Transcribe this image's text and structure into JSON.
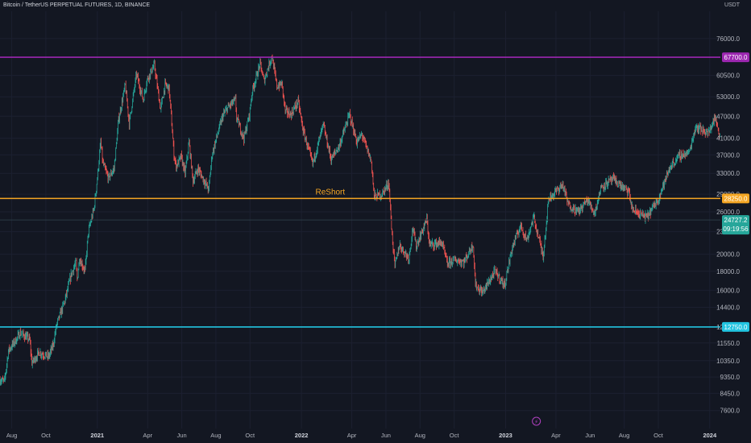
{
  "header": {
    "title": "Bitcoin / TetherUS PERPETUAL FUTURES, 1D, BINANCE",
    "currency": "USDT"
  },
  "colors": {
    "background": "#131722",
    "axis_text": "#b2b5be",
    "candle_up": "#26a69a",
    "candle_down": "#ef5350",
    "level_top": "#9c27b0",
    "level_mid": "#f5a623",
    "level_low": "#22c4e0",
    "current_price": "#26a69a"
  },
  "chart_data": {
    "type": "candlestick",
    "title": "Bitcoin / TetherUS PERPETUAL FUTURES, 1D, BINANCE",
    "y_unit": "USDT",
    "y_scale": "log",
    "y_range": [
      6800,
      90000
    ],
    "x_range": [
      "2020-07-11",
      "2024-01-20"
    ],
    "y_ticks": [
      "76000.0",
      "60500.0",
      "53000.0",
      "47000.0",
      "41000.0",
      "37000.0",
      "33000.0",
      "29000.0",
      "26000.0",
      "23000.0",
      "20000.0",
      "18000.0",
      "16000.0",
      "14400.0",
      "12750.0",
      "11550.0",
      "10350.0",
      "9350.0",
      "8450.0",
      "7600.0"
    ],
    "x_ticks": [
      {
        "label": "Aug",
        "date": "2020-08-01",
        "bold": false
      },
      {
        "label": "Oct",
        "date": "2020-10-01",
        "bold": false
      },
      {
        "label": "2021",
        "date": "2021-01-01",
        "bold": true
      },
      {
        "label": "Apr",
        "date": "2021-04-01",
        "bold": false
      },
      {
        "label": "Jun",
        "date": "2021-06-01",
        "bold": false
      },
      {
        "label": "Aug",
        "date": "2021-08-01",
        "bold": false
      },
      {
        "label": "Oct",
        "date": "2021-10-01",
        "bold": false
      },
      {
        "label": "2022",
        "date": "2022-01-01",
        "bold": true
      },
      {
        "label": "Apr",
        "date": "2022-04-01",
        "bold": false
      },
      {
        "label": "Jun",
        "date": "2022-06-01",
        "bold": false
      },
      {
        "label": "Aug",
        "date": "2022-08-01",
        "bold": false
      },
      {
        "label": "Oct",
        "date": "2022-10-01",
        "bold": false
      },
      {
        "label": "2023",
        "date": "2023-01-01",
        "bold": true
      },
      {
        "label": "Apr",
        "date": "2023-04-01",
        "bold": false
      },
      {
        "label": "Jun",
        "date": "2023-06-01",
        "bold": false
      },
      {
        "label": "Aug",
        "date": "2023-08-01",
        "bold": false
      },
      {
        "label": "Oct",
        "date": "2023-10-01",
        "bold": false
      },
      {
        "label": "2024",
        "date": "2024-01-01",
        "bold": true
      }
    ],
    "horizontal_levels": [
      {
        "price": 67700,
        "label": "67700.0",
        "color": "#9c27b0"
      },
      {
        "price": 28250,
        "label": "28250.0",
        "color": "#f5a623",
        "annotation": "ReShort"
      },
      {
        "price": 12750,
        "label": "12750.0",
        "color": "#22c4e0"
      }
    ],
    "current_price": {
      "price": 24727,
      "label": "24727.2",
      "countdown": "09:19:56"
    },
    "event_marker": {
      "date": "2023-02-25",
      "symbol": "⚡"
    },
    "price_path": [
      [
        "2020-07-11",
        9200
      ],
      [
        "2020-07-20",
        9100
      ],
      [
        "2020-07-27",
        11000
      ],
      [
        "2020-08-10",
        11800
      ],
      [
        "2020-08-17",
        12300
      ],
      [
        "2020-09-03",
        11800
      ],
      [
        "2020-09-07",
        10200
      ],
      [
        "2020-09-20",
        10900
      ],
      [
        "2020-10-07",
        10600
      ],
      [
        "2020-10-15",
        11400
      ],
      [
        "2020-10-21",
        12900
      ],
      [
        "2020-11-05",
        15000
      ],
      [
        "2020-11-17",
        17800
      ],
      [
        "2020-11-25",
        19000
      ],
      [
        "2020-11-27",
        17100
      ],
      [
        "2020-12-01",
        19500
      ],
      [
        "2020-12-11",
        18000
      ],
      [
        "2020-12-17",
        23000
      ],
      [
        "2020-12-27",
        26500
      ],
      [
        "2021-01-02",
        32000
      ],
      [
        "2021-01-08",
        40000
      ],
      [
        "2021-01-12",
        35000
      ],
      [
        "2021-01-22",
        32000
      ],
      [
        "2021-02-01",
        34000
      ],
      [
        "2021-02-09",
        46000
      ],
      [
        "2021-02-21",
        57000
      ],
      [
        "2021-02-28",
        45000
      ],
      [
        "2021-03-13",
        61000
      ],
      [
        "2021-03-25",
        52000
      ],
      [
        "2021-04-01",
        59000
      ],
      [
        "2021-04-14",
        64500
      ],
      [
        "2021-04-25",
        49000
      ],
      [
        "2021-05-03",
        57000
      ],
      [
        "2021-05-10",
        56000
      ],
      [
        "2021-05-13",
        49500
      ],
      [
        "2021-05-19",
        37000
      ],
      [
        "2021-05-23",
        34500
      ],
      [
        "2021-06-01",
        36500
      ],
      [
        "2021-06-08",
        33000
      ],
      [
        "2021-06-15",
        40000
      ],
      [
        "2021-06-22",
        31500
      ],
      [
        "2021-07-01",
        34000
      ],
      [
        "2021-07-20",
        29800
      ],
      [
        "2021-07-26",
        37000
      ],
      [
        "2021-08-01",
        40000
      ],
      [
        "2021-08-14",
        47000
      ],
      [
        "2021-08-23",
        49500
      ],
      [
        "2021-09-06",
        52000
      ],
      [
        "2021-09-08",
        46500
      ],
      [
        "2021-09-21",
        41000
      ],
      [
        "2021-10-01",
        47500
      ],
      [
        "2021-10-06",
        55000
      ],
      [
        "2021-10-20",
        65000
      ],
      [
        "2021-10-27",
        58500
      ],
      [
        "2021-11-10",
        68500
      ],
      [
        "2021-11-19",
        56500
      ],
      [
        "2021-11-28",
        57500
      ],
      [
        "2021-12-04",
        48500
      ],
      [
        "2021-12-14",
        47500
      ],
      [
        "2021-12-27",
        51500
      ],
      [
        "2022-01-05",
        43000
      ],
      [
        "2022-01-22",
        35000
      ],
      [
        "2022-02-10",
        44500
      ],
      [
        "2022-02-24",
        36000
      ],
      [
        "2022-03-10",
        39000
      ],
      [
        "2022-03-29",
        47500
      ],
      [
        "2022-04-11",
        40000
      ],
      [
        "2022-04-20",
        42000
      ],
      [
        "2022-05-07",
        35500
      ],
      [
        "2022-05-12",
        28500
      ],
      [
        "2022-05-26",
        29000
      ],
      [
        "2022-06-07",
        31200
      ],
      [
        "2022-06-13",
        22500
      ],
      [
        "2022-06-18",
        18500
      ],
      [
        "2022-06-26",
        21200
      ],
      [
        "2022-07-13",
        19500
      ],
      [
        "2022-07-20",
        23600
      ],
      [
        "2022-07-26",
        21000
      ],
      [
        "2022-08-14",
        24800
      ],
      [
        "2022-08-19",
        21200
      ],
      [
        "2022-09-10",
        21500
      ],
      [
        "2022-09-20",
        18800
      ],
      [
        "2022-10-01",
        19300
      ],
      [
        "2022-10-20",
        19100
      ],
      [
        "2022-11-05",
        21300
      ],
      [
        "2022-11-09",
        16500
      ],
      [
        "2022-11-22",
        15800
      ],
      [
        "2022-12-14",
        18000
      ],
      [
        "2022-12-31",
        16500
      ],
      [
        "2023-01-14",
        20900
      ],
      [
        "2023-01-29",
        23900
      ],
      [
        "2023-02-09",
        21800
      ],
      [
        "2023-02-21",
        25200
      ],
      [
        "2023-03-10",
        19800
      ],
      [
        "2023-03-20",
        28200
      ],
      [
        "2023-04-14",
        30800
      ],
      [
        "2023-04-24",
        27200
      ],
      [
        "2023-05-12",
        26000
      ],
      [
        "2023-05-28",
        28000
      ],
      [
        "2023-06-10",
        25800
      ],
      [
        "2023-06-22",
        30400
      ],
      [
        "2023-07-13",
        31800
      ],
      [
        "2023-08-10",
        29400
      ],
      [
        "2023-08-17",
        26300
      ],
      [
        "2023-09-11",
        25100
      ],
      [
        "2023-10-01",
        28000
      ],
      [
        "2023-10-24",
        34500
      ],
      [
        "2023-11-09",
        36800
      ],
      [
        "2023-11-26",
        37500
      ],
      [
        "2023-12-08",
        44200
      ],
      [
        "2023-12-31",
        42300
      ],
      [
        "2024-01-11",
        46700
      ],
      [
        "2024-01-20",
        41700
      ]
    ]
  },
  "annotations": {
    "reshort": "ReShort"
  }
}
